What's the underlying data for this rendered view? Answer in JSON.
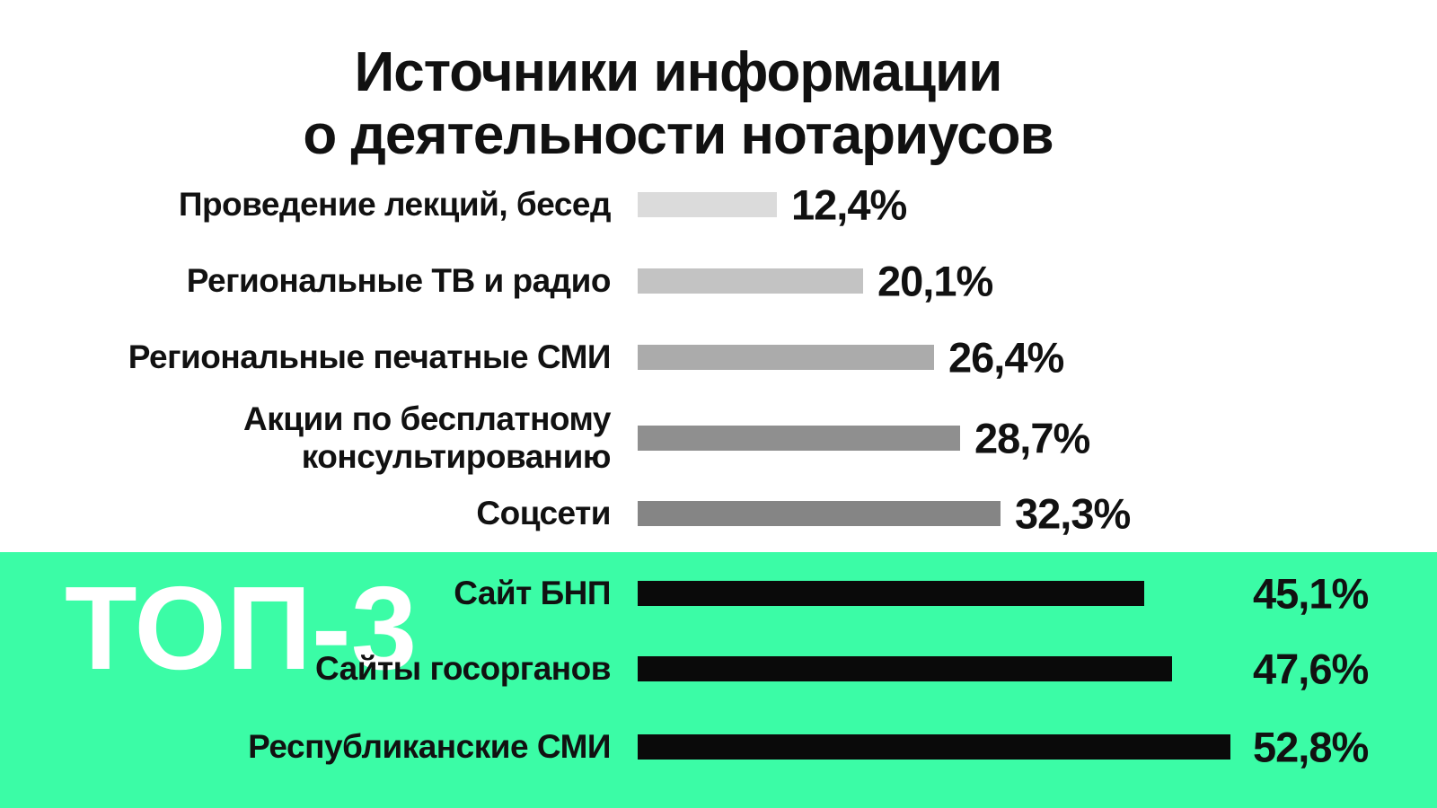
{
  "title": {
    "line1": "Источники информации",
    "line2": "о деятельности нотариусов"
  },
  "top3_label": "ТОП-3",
  "colors": {
    "background": "#ffffff",
    "highlight_panel": "#3bfca6",
    "bar_black": "#0a0a0a",
    "text": "#111111",
    "top3_text": "#ffffff"
  },
  "chart_data": {
    "type": "bar",
    "orientation": "horizontal",
    "title": "Источники информации о деятельности нотариусов",
    "xlabel": "",
    "ylabel": "",
    "unit": "%",
    "xlim": [
      0,
      60
    ],
    "grid": false,
    "legend": false,
    "categories": [
      "Проведение лекций, бесед",
      "Региональные ТВ и радио",
      "Региональные печатные СМИ",
      "Акции по бесплатному консультированию",
      "Соцсети",
      "Сайт БНП",
      "Сайты госорганов",
      "Республиканские СМИ"
    ],
    "values": [
      12.4,
      20.1,
      26.4,
      28.7,
      32.3,
      45.1,
      47.6,
      52.8
    ],
    "value_labels": [
      "12,4%",
      "20,1%",
      "26,4%",
      "28,7%",
      "32,3%",
      "45,1%",
      "47,6%",
      "52,8%"
    ],
    "highlight_group": {
      "label": "ТОП-3",
      "categories": [
        "Сайт БНП",
        "Сайты госорганов",
        "Республиканские СМИ"
      ],
      "panel_color": "#3bfca6",
      "bar_color": "#0a0a0a"
    }
  },
  "rows": [
    {
      "label": "Проведение лекций, бесед",
      "value": 12.4,
      "value_label": "12,4%",
      "bar_color": "#dbdbdb",
      "group": "regular"
    },
    {
      "label": "Региональные ТВ и радио",
      "value": 20.1,
      "value_label": "20,1%",
      "bar_color": "#c3c3c3",
      "group": "regular"
    },
    {
      "label": "Региональные печатные СМИ",
      "value": 26.4,
      "value_label": "26,4%",
      "bar_color": "#ababab",
      "group": "regular"
    },
    {
      "label": "Акции по бесплатному\nконсультированию",
      "value": 28.7,
      "value_label": "28,7%",
      "bar_color": "#8f8f8f",
      "group": "regular"
    },
    {
      "label": "Соцсети",
      "value": 32.3,
      "value_label": "32,3%",
      "bar_color": "#858585",
      "group": "regular"
    },
    {
      "label": "Сайт БНП",
      "value": 45.1,
      "value_label": "45,1%",
      "bar_color": "#0a0a0a",
      "group": "top3"
    },
    {
      "label": "Сайты госорганов",
      "value": 47.6,
      "value_label": "47,6%",
      "bar_color": "#0a0a0a",
      "group": "top3"
    },
    {
      "label": "Республиканские СМИ",
      "value": 52.8,
      "value_label": "52,8%",
      "bar_color": "#0a0a0a",
      "group": "top3"
    }
  ]
}
